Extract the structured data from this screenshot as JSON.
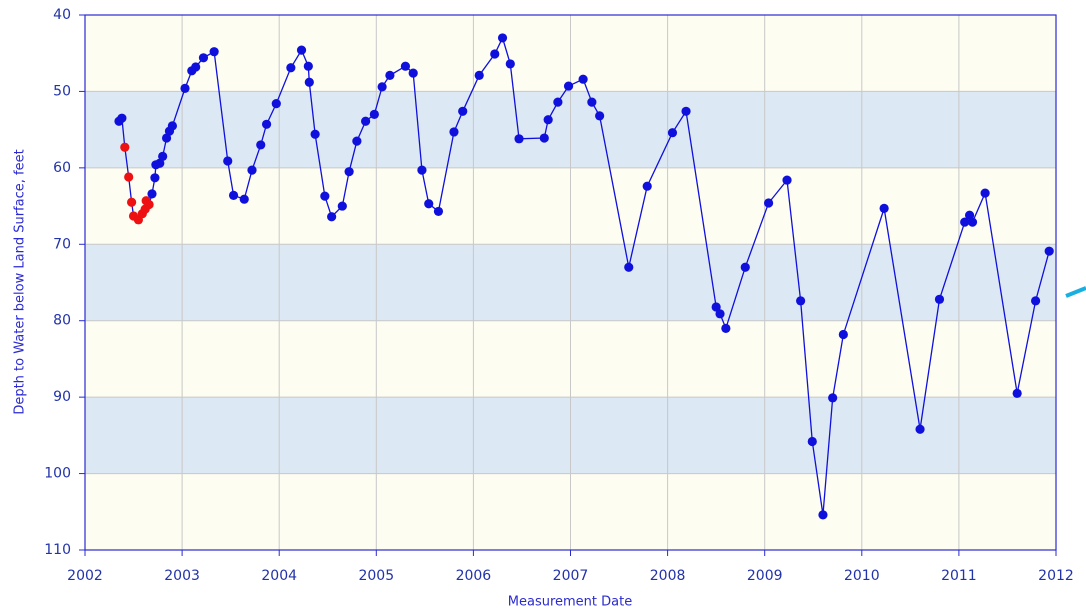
{
  "chart_data": {
    "type": "line",
    "x_label": "Measurement Date",
    "y_label": "Depth to Water below Land Surface, feet",
    "xlim": [
      2002,
      2012
    ],
    "xticks": [
      2002,
      2003,
      2004,
      2005,
      2006,
      2007,
      2008,
      2009,
      2010,
      2011,
      2012
    ],
    "ylim": [
      40,
      110
    ],
    "yticks": [
      40,
      50,
      60,
      70,
      80,
      90,
      100,
      110
    ],
    "y_reversed": true,
    "grid": true,
    "band_color": "#dce8f3",
    "background": "#fdfdf2",
    "series": [
      {
        "color": "#1010dd",
        "x": [
          2002.35,
          2002.38,
          2002.41,
          2002.45,
          2002.48,
          2002.5,
          2002.55,
          2002.59,
          2002.62,
          2002.63,
          2002.66,
          2002.69,
          2002.72,
          2002.73,
          2002.77,
          2002.8,
          2002.84,
          2002.87,
          2002.9,
          2003.03,
          2003.1,
          2003.14,
          2003.22,
          2003.33,
          2003.47,
          2003.53,
          2003.64,
          2003.72,
          2003.81,
          2003.87,
          2003.97,
          2004.12,
          2004.23,
          2004.3,
          2004.31,
          2004.37,
          2004.47,
          2004.54,
          2004.65,
          2004.72,
          2004.8,
          2004.89,
          2004.98,
          2005.06,
          2005.14,
          2005.3,
          2005.38,
          2005.47,
          2005.54,
          2005.64,
          2005.8,
          2005.89,
          2006.06,
          2006.22,
          2006.3,
          2006.38,
          2006.47,
          2006.73,
          2006.77,
          2006.87,
          2006.98,
          2007.13,
          2007.22,
          2007.3,
          2007.6,
          2007.79,
          2008.05,
          2008.19,
          2008.5,
          2008.54,
          2008.6,
          2008.8,
          2009.04,
          2009.23,
          2009.37,
          2009.49,
          2009.6,
          2009.7,
          2009.81,
          2010.23,
          2010.6,
          2010.8,
          2011.06,
          2011.11,
          2011.14,
          2011.27,
          2011.6,
          2011.79,
          2011.93
        ],
        "values": [
          53.9,
          53.5,
          57.3,
          61.2,
          64.5,
          66.3,
          66.8,
          66.0,
          65.4,
          64.3,
          64.8,
          63.4,
          61.3,
          59.6,
          59.4,
          58.5,
          56.1,
          55.2,
          54.5,
          49.6,
          47.3,
          46.8,
          45.6,
          44.8,
          59.1,
          63.6,
          64.1,
          60.3,
          57.0,
          54.3,
          51.6,
          46.9,
          44.6,
          46.7,
          48.8,
          55.6,
          63.7,
          66.4,
          65.0,
          60.5,
          56.5,
          53.9,
          53.0,
          49.4,
          47.9,
          46.7,
          47.6,
          60.3,
          64.7,
          65.7,
          55.3,
          52.6,
          47.9,
          45.1,
          43.0,
          46.4,
          56.2,
          56.1,
          53.7,
          51.4,
          49.3,
          48.4,
          51.4,
          53.2,
          73.0,
          62.4,
          55.4,
          52.6,
          78.2,
          79.1,
          81.0,
          73.0,
          64.6,
          61.6,
          77.4,
          95.8,
          105.4,
          90.1,
          81.8,
          65.3,
          94.2,
          77.2,
          67.1,
          66.2,
          67.1,
          63.3,
          89.5,
          77.4,
          70.9
        ],
        "point_colors": [
          "#1010dd",
          "#1010dd",
          "#ee1111",
          "#ee1111",
          "#ee1111",
          "#ee1111",
          "#ee1111",
          "#ee1111",
          "#ee1111",
          "#ee1111",
          "#ee1111",
          "#1010dd",
          "#1010dd",
          "#1010dd",
          "#1010dd",
          "#1010dd",
          "#1010dd",
          "#1010dd",
          "#1010dd",
          "#1010dd",
          "#1010dd",
          "#1010dd",
          "#1010dd",
          "#1010dd",
          "#1010dd",
          "#1010dd",
          "#1010dd",
          "#1010dd",
          "#1010dd",
          "#1010dd",
          "#1010dd",
          "#1010dd",
          "#1010dd",
          "#1010dd",
          "#1010dd",
          "#1010dd",
          "#1010dd",
          "#1010dd",
          "#1010dd",
          "#1010dd",
          "#1010dd",
          "#1010dd",
          "#1010dd",
          "#1010dd",
          "#1010dd",
          "#1010dd",
          "#1010dd",
          "#1010dd",
          "#1010dd",
          "#1010dd",
          "#1010dd",
          "#1010dd",
          "#1010dd",
          "#1010dd",
          "#1010dd",
          "#1010dd",
          "#1010dd",
          "#1010dd",
          "#1010dd",
          "#1010dd",
          "#1010dd",
          "#1010dd",
          "#1010dd",
          "#1010dd",
          "#1010dd",
          "#1010dd",
          "#1010dd",
          "#1010dd",
          "#1010dd",
          "#1010dd",
          "#1010dd",
          "#1010dd",
          "#1010dd",
          "#1010dd",
          "#1010dd",
          "#1010dd",
          "#1010dd",
          "#1010dd",
          "#1010dd",
          "#1010dd",
          "#1010dd",
          "#1010dd",
          "#1010dd",
          "#1010dd",
          "#1010dd",
          "#1010dd",
          "#1010dd",
          "#1010dd",
          "#1010dd"
        ]
      }
    ]
  }
}
